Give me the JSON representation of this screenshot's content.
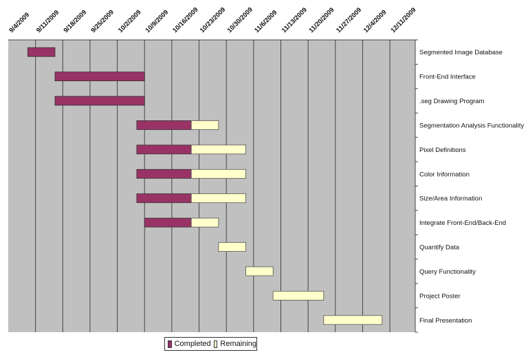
{
  "chart_data": {
    "type": "gantt",
    "title": "",
    "x_axis": {
      "type": "date",
      "ticks": [
        "9/4/2009",
        "9/11/2009",
        "9/18/2009",
        "9/25/2009",
        "10/2/2009",
        "10/9/2009",
        "10/16/2009",
        "10/23/2009",
        "10/30/2009",
        "11/6/2009",
        "11/13/2009",
        "11/20/2009",
        "11/27/2009",
        "12/4/2009",
        "12/11/2009"
      ],
      "range": [
        "2009-09-04",
        "2009-12-17"
      ],
      "position": "top",
      "grid": true
    },
    "colors": {
      "Completed": "#993366",
      "Remaining": "#ffffcc",
      "plot_background": "#c0c0c0"
    },
    "legend": {
      "position": "bottom",
      "entries": [
        "Completed",
        "Remaining"
      ]
    },
    "tasks": [
      {
        "name": "Segmented Image Database",
        "start": "2009-09-09",
        "completed_end": "2009-09-16",
        "end": "2009-09-16"
      },
      {
        "name": "Front-End Interface",
        "start": "2009-09-16",
        "completed_end": "2009-10-09",
        "end": "2009-10-09"
      },
      {
        "name": ".seg Drawing Program",
        "start": "2009-09-16",
        "completed_end": "2009-10-09",
        "end": "2009-10-09"
      },
      {
        "name": "Segmentation Analysis Functionality",
        "start": "2009-10-07",
        "completed_end": "2009-10-21",
        "end": "2009-10-28"
      },
      {
        "name": "Pixel Definitions",
        "start": "2009-10-07",
        "completed_end": "2009-10-21",
        "end": "2009-11-04"
      },
      {
        "name": "Color Information",
        "start": "2009-10-07",
        "completed_end": "2009-10-21",
        "end": "2009-11-04"
      },
      {
        "name": "Size/Area Information",
        "start": "2009-10-07",
        "completed_end": "2009-10-21",
        "end": "2009-11-04"
      },
      {
        "name": "Integrate Front-End/Back-End",
        "start": "2009-10-09",
        "completed_end": "2009-10-21",
        "end": "2009-10-28"
      },
      {
        "name": "Quantify Data",
        "start": "2009-10-28",
        "completed_end": "2009-10-28",
        "end": "2009-11-04"
      },
      {
        "name": "Query Functionality",
        "start": "2009-11-04",
        "completed_end": "2009-11-04",
        "end": "2009-11-11"
      },
      {
        "name": "Project Poster",
        "start": "2009-11-11",
        "completed_end": "2009-11-11",
        "end": "2009-11-24"
      },
      {
        "name": "Final Presentation",
        "start": "2009-11-24",
        "completed_end": "2009-11-24",
        "end": "2009-12-09"
      }
    ]
  }
}
